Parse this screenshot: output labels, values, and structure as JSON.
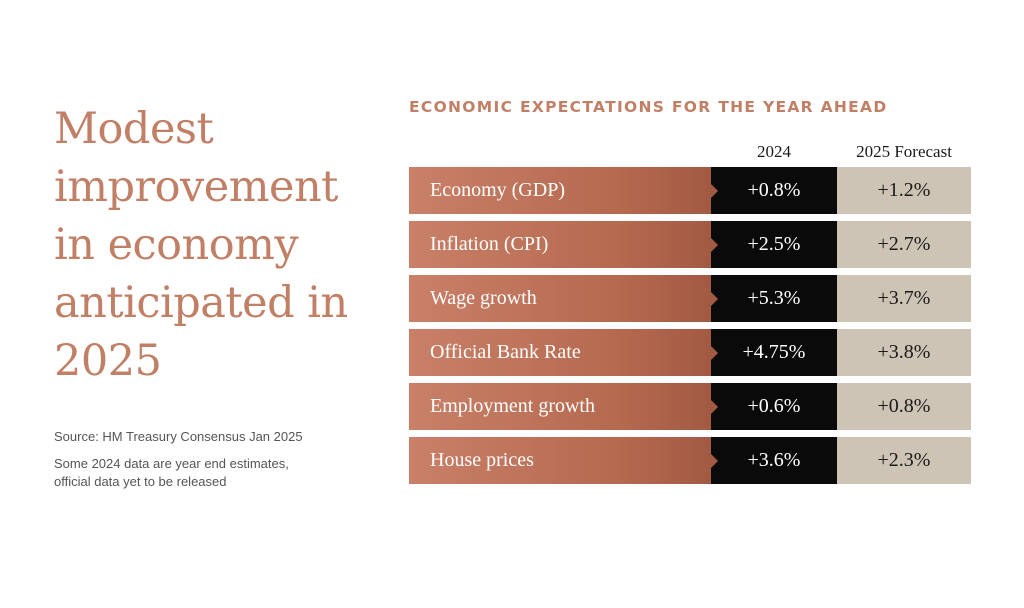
{
  "headline": "Modest improvement in economy anticipated in 2025",
  "notes": {
    "source": "Source: HM Treasury Consensus Jan 2025",
    "caveat": "Some 2024 data are year end estimates, official data yet to be released"
  },
  "table": {
    "title": "ECONOMIC EXPECTATIONS FOR THE YEAR AHEAD",
    "columns": [
      "2024",
      "2025 Forecast"
    ],
    "rows": [
      {
        "label": "Economy (GDP)",
        "v2024": "+0.8%",
        "v2025": "+1.2%"
      },
      {
        "label": "Inflation (CPI)",
        "v2024": "+2.5%",
        "v2025": "+2.7%"
      },
      {
        "label": "Wage growth",
        "v2024": "+5.3%",
        "v2025": "+3.7%"
      },
      {
        "label": "Official Bank Rate",
        "v2024": "+4.75%",
        "v2025": "+3.8%"
      },
      {
        "label": "Employment growth",
        "v2024": "+0.6%",
        "v2025": "+0.8%"
      },
      {
        "label": "House prices",
        "v2024": "+3.6%",
        "v2025": "+2.3%"
      }
    ]
  },
  "colors": {
    "accent": "#c17f65",
    "label_bg": "#b5694f",
    "col2024_bg": "#0a0a0a",
    "col2025_bg": "#cdc4b5"
  }
}
